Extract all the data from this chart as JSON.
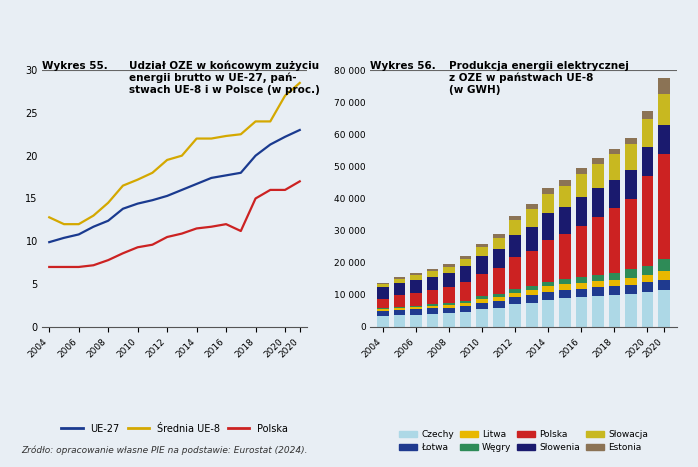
{
  "years": [
    2004,
    2005,
    2006,
    2007,
    2008,
    2009,
    2010,
    2011,
    2012,
    2013,
    2014,
    2015,
    2016,
    2017,
    2018,
    2019,
    2020,
    2021
  ],
  "ue27": [
    9.9,
    10.4,
    10.8,
    11.7,
    12.4,
    13.8,
    14.4,
    14.8,
    15.3,
    16.0,
    16.7,
    17.4,
    17.7,
    18.0,
    20.0,
    21.3,
    22.2,
    23.0
  ],
  "ue8": [
    12.8,
    12.0,
    12.0,
    13.0,
    14.5,
    16.5,
    17.2,
    18.0,
    19.5,
    20.0,
    22.0,
    22.0,
    22.3,
    22.5,
    24.0,
    24.0,
    27.0,
    28.5
  ],
  "polska_line": [
    7.0,
    7.0,
    7.0,
    7.2,
    7.8,
    8.6,
    9.3,
    9.6,
    10.5,
    10.9,
    11.5,
    11.7,
    12.0,
    11.2,
    15.0,
    16.0,
    16.0,
    17.0
  ],
  "line_colors": {
    "ue27": "#1a3a8f",
    "ue8": "#d4a800",
    "polska": "#cc2222"
  },
  "bar_years": [
    2004,
    2005,
    2006,
    2007,
    2008,
    2009,
    2010,
    2011,
    2012,
    2013,
    2014,
    2015,
    2016,
    2017,
    2018,
    2019,
    2020,
    2021
  ],
  "Czechy": [
    3500,
    3700,
    3800,
    4000,
    4200,
    4500,
    5500,
    6000,
    7000,
    7500,
    8500,
    9000,
    9200,
    9500,
    9800,
    10200,
    10800,
    11500
  ],
  "Lotwa": [
    1600,
    1700,
    1700,
    1800,
    1800,
    1900,
    2000,
    2100,
    2200,
    2400,
    2500,
    2600,
    2700,
    2800,
    2900,
    3000,
    3100,
    3200
  ],
  "Litwa": [
    500,
    600,
    700,
    800,
    900,
    1000,
    1100,
    1200,
    1400,
    1500,
    1700,
    1800,
    1900,
    1900,
    2000,
    2100,
    2300,
    2600
  ],
  "Wegry": [
    200,
    300,
    400,
    500,
    600,
    700,
    900,
    1000,
    1100,
    1200,
    1300,
    1500,
    1700,
    2000,
    2200,
    2600,
    2900,
    3700
  ],
  "Polska": [
    3000,
    3500,
    4000,
    4500,
    5000,
    6000,
    7000,
    8000,
    10000,
    11000,
    13000,
    14000,
    16000,
    18000,
    20000,
    22000,
    28000,
    33000
  ],
  "Slowenia": [
    3500,
    3800,
    4000,
    4000,
    4300,
    4800,
    5500,
    6000,
    7000,
    7500,
    8500,
    8500,
    9000,
    9000,
    9000,
    9000,
    9000,
    9000
  ],
  "Slowacja": [
    1200,
    1400,
    1600,
    1800,
    2000,
    2300,
    3000,
    3500,
    4500,
    5500,
    6000,
    6500,
    7000,
    7500,
    7800,
    8200,
    8800,
    9500
  ],
  "Estonia": [
    300,
    400,
    500,
    600,
    700,
    800,
    900,
    1100,
    1400,
    1600,
    1700,
    1800,
    1900,
    1900,
    1700,
    1700,
    2400,
    5000
  ],
  "bar_colors": {
    "Czechy": "#add8e6",
    "Lotwa": "#1f3a8f",
    "Litwa": "#e8b800",
    "Wegry": "#2e8b57",
    "Polska": "#cc2222",
    "Slowenia": "#1a1a6e",
    "Slowacja": "#c8b820",
    "Estonia": "#8b7355"
  },
  "ylim1": [
    0,
    30
  ],
  "ylim2": [
    0,
    80000
  ],
  "yticks1": [
    0,
    5,
    10,
    15,
    20,
    25,
    30
  ],
  "yticks2": [
    0,
    10000,
    20000,
    30000,
    40000,
    50000,
    60000,
    70000,
    80000
  ],
  "bg_color": "#e8eef4",
  "source": "Zródło: opracowanie własne PIE na podstawie: Eurostat (2024)."
}
